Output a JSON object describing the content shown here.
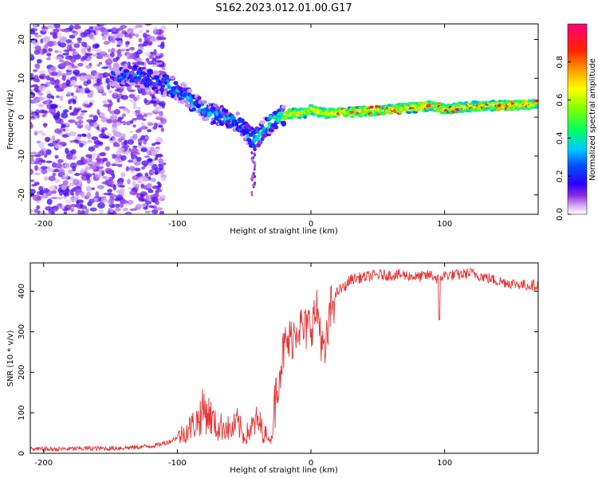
{
  "figure": {
    "title": "S162.2023.012.01.00.G17"
  },
  "chart_data": [
    {
      "type": "heatmap",
      "xlabel": "Height of straight line (km)",
      "ylabel": "Frequency (Hz)",
      "xlim": [
        -210,
        170
      ],
      "ylim": [
        -25,
        24
      ],
      "x_ticks": [
        -200,
        -100,
        0,
        100
      ],
      "x_tick_labels": [
        "-200",
        "-100",
        "0",
        "100"
      ],
      "y_ticks": [
        20,
        10,
        0,
        -10,
        -20
      ],
      "y_tick_labels": [
        "20",
        "10",
        "0",
        "-10",
        "-20"
      ],
      "ridge_frequency": {
        "x": [
          -145,
          -135,
          -125,
          -115,
          -105,
          -95,
          -85,
          -75,
          -65,
          -55,
          -48,
          -42,
          -35,
          -25,
          -15,
          -5,
          0,
          10,
          20,
          40,
          60,
          80,
          90,
          100,
          110,
          130,
          150,
          170
        ],
        "y": [
          10,
          11,
          10,
          9,
          8,
          6,
          3,
          1,
          0,
          -1,
          -4,
          -6,
          -3,
          0,
          1,
          1,
          2,
          1,
          1,
          1.5,
          2,
          2.5,
          3,
          2,
          2.5,
          3,
          3,
          3.5
        ]
      },
      "colorbar": {
        "label": "Normalized spectral amplitude",
        "range": [
          0,
          1
        ],
        "ticks": [
          0.0,
          0.2,
          0.4,
          0.6,
          0.8
        ],
        "tick_labels": [
          "0.0",
          "0.2",
          "0.4",
          "0.6",
          "0.8"
        ]
      },
      "grid": false
    },
    {
      "type": "line",
      "xlabel": "Height of straight line (km)",
      "ylabel": "SNR (10 * v/v)",
      "xlim": [
        -210,
        170
      ],
      "ylim": [
        0,
        470
      ],
      "x_ticks": [
        -200,
        -100,
        0,
        100
      ],
      "x_tick_labels": [
        "-200",
        "-100",
        "0",
        "100"
      ],
      "y_ticks": [
        0,
        100,
        200,
        300,
        400
      ],
      "y_tick_labels": [
        "0",
        "100",
        "200",
        "300",
        "400"
      ],
      "line_color": "#e53535",
      "series": [
        {
          "x": [
            -210,
            -190,
            -170,
            -150,
            -130,
            -115,
            -105,
            -95,
            -85,
            -80,
            -75,
            -70,
            -65,
            -60,
            -55,
            -50,
            -45,
            -40,
            -35,
            -30,
            -25,
            -20,
            -15,
            -10,
            -5,
            0,
            5,
            10,
            15,
            20,
            25,
            30,
            40,
            50,
            60,
            70,
            80,
            90,
            95,
            100,
            110,
            120,
            130,
            140,
            150,
            160,
            170
          ],
          "y": [
            10,
            10,
            12,
            12,
            15,
            20,
            30,
            50,
            80,
            110,
            90,
            60,
            70,
            55,
            75,
            40,
            60,
            80,
            50,
            30,
            180,
            260,
            280,
            320,
            300,
            320,
            350,
            230,
            360,
            400,
            410,
            430,
            435,
            440,
            440,
            440,
            435,
            440,
            430,
            440,
            440,
            445,
            435,
            425,
            420,
            415,
            415
          ]
        }
      ],
      "grid": false
    }
  ]
}
